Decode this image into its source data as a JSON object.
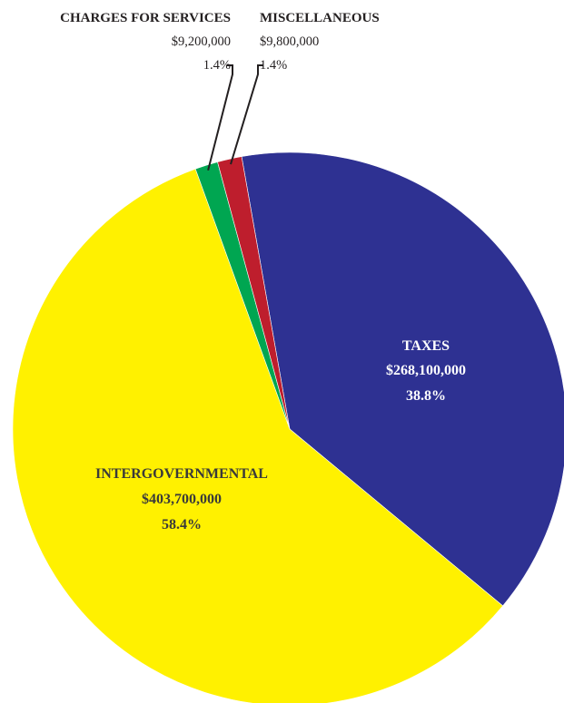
{
  "chart_data": {
    "type": "pie",
    "title": "",
    "start_angle_deg": -10,
    "direction": "clockwise",
    "slices": [
      {
        "name": "TAXES",
        "value_label": "$268,100,000",
        "pct_label": "38.8%",
        "value": 268100000,
        "color": "#2e3192",
        "label_style": "inside",
        "label_color": "#ffffff"
      },
      {
        "name": "INTERGOVERNMENTAL",
        "value_label": "$403,700,000",
        "pct_label": "58.4%",
        "value": 403700000,
        "color": "#fff100",
        "label_style": "inside",
        "label_color": "#3a3a3a"
      },
      {
        "name": "CHARGES FOR SERVICES",
        "value_label": "$9,200,000",
        "pct_label": "1.4%",
        "value": 9200000,
        "color": "#00a651",
        "label_style": "callout",
        "label_color": "#231f20"
      },
      {
        "name": "MISCELLANEOUS",
        "value_label": "$9,800,000",
        "pct_label": "1.4%",
        "value": 9800000,
        "color": "#be1e2d",
        "label_style": "callout",
        "label_color": "#231f20"
      }
    ]
  }
}
